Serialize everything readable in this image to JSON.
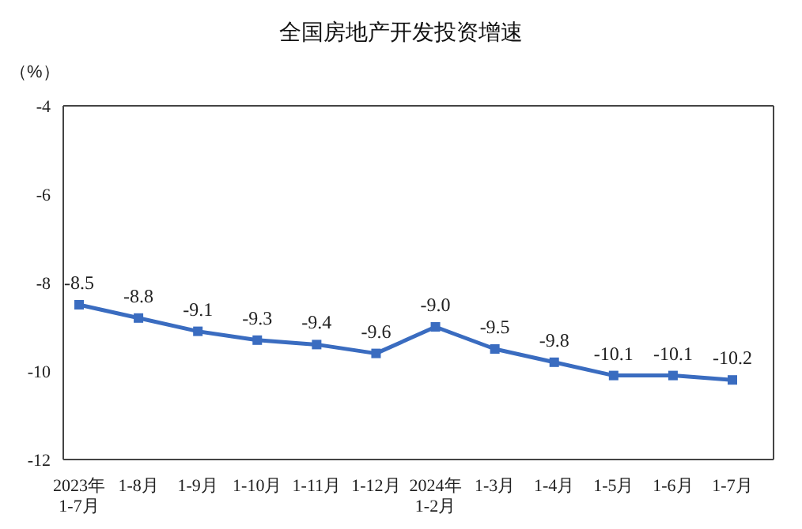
{
  "chart_data": {
    "type": "line",
    "title": "全国房地产开发投资增速",
    "ylabel": "（%）",
    "categories": [
      "2023年\n1-7月",
      "1-8月",
      "1-9月",
      "1-10月",
      "1-11月",
      "1-12月",
      "2024年\n1-2月",
      "1-3月",
      "1-4月",
      "1-5月",
      "1-6月",
      "1-7月"
    ],
    "series": [
      {
        "color": "#3a6cc0",
        "values": [
          -8.5,
          -8.8,
          -9.1,
          -9.3,
          -9.4,
          -9.6,
          -9.0,
          -9.5,
          -9.8,
          -10.1,
          -10.1,
          -10.2
        ],
        "value_labels": [
          "-8.5",
          "-8.8",
          "-9.1",
          "-9.3",
          "-9.4",
          "-9.6",
          "-9.0",
          "-9.5",
          "-9.8",
          "-10.1",
          "-10.1",
          "-10.2"
        ]
      }
    ],
    "ylim": [
      -12,
      -4
    ],
    "yticks": [
      -12,
      -10,
      -8,
      -6,
      -4
    ],
    "grid": false,
    "legend": false,
    "marker": "square",
    "line_style": "solid"
  }
}
